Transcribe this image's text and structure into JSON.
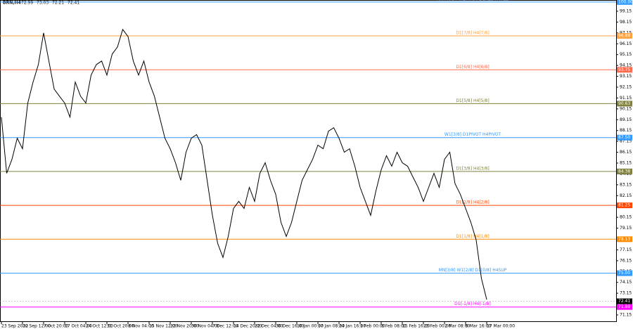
{
  "chart_data": {
    "type": "line",
    "symbol": "BRN,H4",
    "ohlc": [
      72.99,
      73.03,
      72.21,
      72.41
    ],
    "categories": [
      "23 Sep 2022",
      null,
      null,
      null,
      "30 Sep 12:00",
      null,
      null,
      null,
      "7 Oct 20:00",
      null,
      null,
      null,
      "17 Oct 04:00",
      null,
      null,
      null,
      "24 Oct 12:00",
      null,
      null,
      null,
      "31 Oct 20:00",
      null,
      null,
      null,
      "8 Nov 04:00",
      null,
      null,
      null,
      "15 Nov 12:00",
      null,
      null,
      null,
      "22 Nov 20:00",
      null,
      null,
      null,
      "30 Nov 04:00",
      null,
      null,
      null,
      "7 Dec 12:00",
      null,
      null,
      null,
      "14 Dec 20:00",
      null,
      null,
      null,
      "22 Dec 04:00",
      null,
      null,
      null,
      "30 Dec 16:00",
      null,
      null,
      null,
      "10 Jan 00:00",
      null,
      null,
      null,
      "17 Jan 08:00",
      null,
      null,
      null,
      "24 Jan 16:00",
      null,
      null,
      null,
      "1 Feb 00:00",
      null,
      null,
      null,
      "8 Feb 08:00",
      null,
      null,
      null,
      "15 Feb 16:00",
      null,
      null,
      null,
      "23 Feb 00:00",
      null,
      null,
      null,
      "2 Mar 08:00",
      null,
      null,
      null,
      "9 Mar 16:00",
      null,
      null,
      null,
      "17 Mar 00:00"
    ],
    "values": [
      89.38,
      84.21,
      85.5,
      87.44,
      86.47,
      90.68,
      92.62,
      94.23,
      97.15,
      94.56,
      91.97,
      91.32,
      90.68,
      89.38,
      92.62,
      91.32,
      90.68,
      93.26,
      94.23,
      94.56,
      93.26,
      95.2,
      95.85,
      97.47,
      96.82,
      94.56,
      93.26,
      94.56,
      92.62,
      91.32,
      89.38,
      87.44,
      86.47,
      85.18,
      83.56,
      86.15,
      87.44,
      87.77,
      86.8,
      83.56,
      80.33,
      77.74,
      76.45,
      78.39,
      80.97,
      81.62,
      80.97,
      82.91,
      81.62,
      84.21,
      85.18,
      83.56,
      82.27,
      79.68,
      78.39,
      79.68,
      81.62,
      83.56,
      84.53,
      85.5,
      86.8,
      86.47,
      88.09,
      88.41,
      87.44,
      86.15,
      86.47,
      84.86,
      82.91,
      81.62,
      80.33,
      82.59,
      84.53,
      85.83,
      84.86,
      86.15,
      85.18,
      84.86,
      83.88,
      82.91,
      81.62,
      82.91,
      84.21,
      82.91,
      85.5,
      86.15,
      83.24,
      82.27,
      80.97,
      79.68,
      78.06,
      74.51,
      72.57
    ],
    "color": "#000000",
    "ylim": [
      70.5,
      100.12
    ],
    "yticks": [
      71.15,
      72.15,
      73.15,
      74.15,
      75.15,
      76.15,
      77.15,
      78.15,
      79.15,
      80.15,
      81.15,
      82.15,
      83.15,
      84.15,
      85.15,
      86.15,
      87.15,
      88.15,
      89.15,
      90.15,
      91.15,
      92.15,
      93.15,
      94.15,
      95.15,
      96.15,
      97.15,
      98.15,
      99.15
    ],
    "grid": false,
    "levels": [
      {
        "name": "MN PIVOT W1PIVOT D1RES H4RES",
        "price": {
          "value": 100,
          "label": "100.00"
        },
        "color": "#3399ff"
      },
      {
        "name": "D1[7/8] H4[7/8]",
        "price": 96.88,
        "color": "#ffa040"
      },
      {
        "name": "D1[6/8] H4[6/8]",
        "price": 93.75,
        "color": "#ff6a4d"
      },
      {
        "name": "D1[5/8] H4[5/8]",
        "price": 90.63,
        "color": "#808040"
      },
      {
        "name": "W1[3/8] D1PIVOT H4PIVOT",
        "price": {
          "value": 87.5,
          "label": "87.50"
        },
        "color": "#3399ff"
      },
      {
        "name": "D1[3/8] H4[3/8]",
        "price": 84.38,
        "color": "#808040"
      },
      {
        "name": "D1[2/8] H4[2/8]",
        "price": 81.25,
        "color": "#ff4500"
      },
      {
        "name": "D1[1/8] H4[1/8]",
        "price": 78.13,
        "color": "#ff8c00"
      },
      {
        "name": "MN[3/8] W1[2/8] D1[0/8] H4SUP",
        "price": {
          "value": 75,
          "label": "75.00"
        },
        "color": "#3399ff"
      },
      {
        "name": "D1[-1/8] H4[-1/8]",
        "price": 71.88,
        "color": "#ff00ff"
      }
    ],
    "last_price": 72.41
  }
}
